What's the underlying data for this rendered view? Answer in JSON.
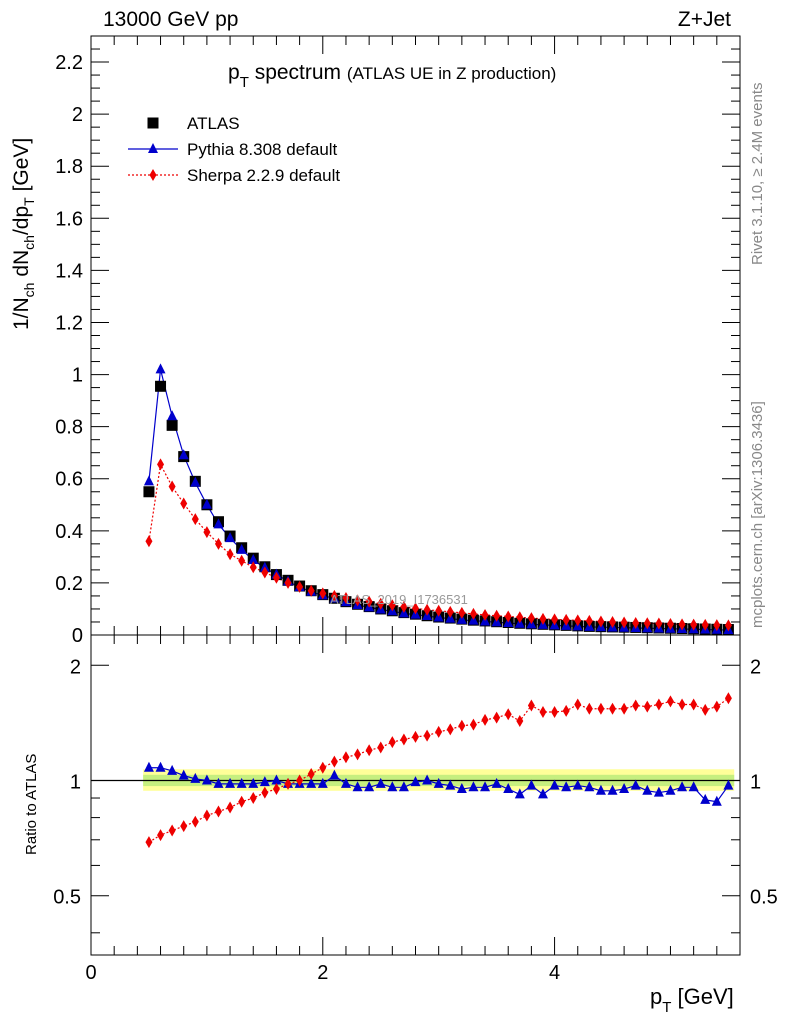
{
  "header": {
    "left": "13000 GeV pp",
    "right": "Z+Jet"
  },
  "side_labels": {
    "rivet": "Rivet 3.1.10, ≥ 2.4M events",
    "mcplots": "mcplots.cern.ch [arXiv:1306.3436]"
  },
  "watermark": "ATLAS_2019_I1736531",
  "main_plot": {
    "title_main": "p",
    "title_sub": "T",
    "title_rest": " spectrum",
    "title_note": "(ATLAS UE in Z production)",
    "ylabel": "1/N_ch dN_ch/dp_T [GeV]",
    "yticks": [
      "0",
      "0.2",
      "0.4",
      "0.6",
      "0.8",
      "1",
      "1.2",
      "1.4",
      "1.6",
      "1.8",
      "2",
      "2.2"
    ]
  },
  "ratio_plot": {
    "ylabel": "Ratio to ATLAS",
    "yticks": [
      "0.5",
      "1",
      "2"
    ]
  },
  "xaxis": {
    "label_main": "p",
    "label_sub": "T",
    "label_unit": " [GeV]",
    "ticks": [
      "0",
      "2",
      "4"
    ]
  },
  "legend": [
    {
      "name": "ATLAS",
      "color": "#000000",
      "marker": "square"
    },
    {
      "name": "Pythia 8.308 default",
      "color": "#0000cc",
      "marker": "triangle"
    },
    {
      "name": "Sherpa 2.2.9 default",
      "color": "#ee0000",
      "marker": "diamond"
    }
  ],
  "chart_data": {
    "type": "scatter",
    "xlim": [
      0,
      5.6
    ],
    "ylim_main": [
      0,
      2.3
    ],
    "ylim_ratio": [
      0.35,
      2.4
    ],
    "ratio_scale": "log",
    "x": [
      0.5,
      0.6,
      0.7,
      0.8,
      0.9,
      1.0,
      1.1,
      1.2,
      1.3,
      1.4,
      1.5,
      1.6,
      1.7,
      1.8,
      1.9,
      2.0,
      2.1,
      2.2,
      2.3,
      2.4,
      2.5,
      2.6,
      2.7,
      2.8,
      2.9,
      3.0,
      3.1,
      3.2,
      3.3,
      3.4,
      3.5,
      3.6,
      3.7,
      3.8,
      3.9,
      4.0,
      4.1,
      4.2,
      4.3,
      4.4,
      4.5,
      4.6,
      4.7,
      4.8,
      4.9,
      5.0,
      5.1,
      5.2,
      5.3,
      5.4,
      5.5
    ],
    "series": [
      {
        "name": "ATLAS",
        "values": [
          0.55,
          0.955,
          0.805,
          0.685,
          0.59,
          0.5,
          0.435,
          0.38,
          0.335,
          0.295,
          0.262,
          0.232,
          0.21,
          0.188,
          0.17,
          0.155,
          0.141,
          0.128,
          0.118,
          0.109,
          0.1,
          0.093,
          0.086,
          0.08,
          0.074,
          0.069,
          0.065,
          0.061,
          0.057,
          0.054,
          0.051,
          0.048,
          0.045,
          0.043,
          0.041,
          0.039,
          0.037,
          0.035,
          0.033,
          0.032,
          0.031,
          0.03,
          0.029,
          0.028,
          0.027,
          0.026,
          0.025,
          0.024,
          0.023,
          0.022,
          0.021
        ]
      },
      {
        "name": "Pythia 8.308 default",
        "values": [
          0.59,
          1.02,
          0.84,
          0.69,
          0.585,
          0.5,
          0.425,
          0.372,
          0.327,
          0.288,
          0.258,
          0.232,
          0.206,
          0.184,
          0.166,
          0.152,
          0.14,
          0.126,
          0.115,
          0.106,
          0.098,
          0.091,
          0.083,
          0.078,
          0.073,
          0.067,
          0.063,
          0.058,
          0.055,
          0.052,
          0.049,
          0.046,
          0.043,
          0.041,
          0.039,
          0.037,
          0.035,
          0.033,
          0.031,
          0.03,
          0.029,
          0.028,
          0.027,
          0.026,
          0.025,
          0.024,
          0.023,
          0.022,
          0.021,
          0.02,
          0.019
        ]
      },
      {
        "name": "Sherpa 2.2.9 default",
        "values": [
          0.36,
          0.655,
          0.57,
          0.505,
          0.445,
          0.395,
          0.35,
          0.31,
          0.285,
          0.26,
          0.24,
          0.22,
          0.2,
          0.185,
          0.17,
          0.16,
          0.15,
          0.142,
          0.133,
          0.128,
          0.12,
          0.114,
          0.108,
          0.102,
          0.097,
          0.093,
          0.089,
          0.085,
          0.081,
          0.077,
          0.074,
          0.071,
          0.068,
          0.065,
          0.062,
          0.06,
          0.058,
          0.056,
          0.054,
          0.052,
          0.05,
          0.048,
          0.046,
          0.045,
          0.044,
          0.042,
          0.041,
          0.04,
          0.039,
          0.038,
          0.037
        ]
      }
    ],
    "ratio_series": [
      {
        "name": "Pythia 8.308 default",
        "values": [
          1.08,
          1.08,
          1.06,
          1.03,
          1.01,
          1.0,
          0.98,
          0.98,
          0.98,
          0.98,
          0.99,
          1.0,
          0.98,
          0.98,
          0.98,
          0.98,
          1.03,
          0.98,
          0.96,
          0.96,
          0.98,
          0.96,
          0.96,
          0.99,
          1.0,
          0.98,
          0.97,
          0.95,
          0.96,
          0.96,
          0.98,
          0.95,
          0.92,
          0.97,
          0.92,
          0.97,
          0.96,
          0.97,
          0.96,
          0.94,
          0.94,
          0.95,
          0.97,
          0.94,
          0.93,
          0.94,
          0.96,
          0.96,
          0.89,
          0.88,
          0.97
        ]
      },
      {
        "name": "Sherpa 2.2.9 default",
        "values": [
          0.69,
          0.72,
          0.74,
          0.76,
          0.78,
          0.81,
          0.83,
          0.85,
          0.88,
          0.9,
          0.93,
          0.95,
          0.98,
          1.0,
          1.04,
          1.08,
          1.12,
          1.15,
          1.17,
          1.2,
          1.22,
          1.26,
          1.28,
          1.3,
          1.31,
          1.34,
          1.36,
          1.39,
          1.4,
          1.44,
          1.46,
          1.49,
          1.43,
          1.57,
          1.51,
          1.51,
          1.52,
          1.58,
          1.54,
          1.54,
          1.54,
          1.54,
          1.57,
          1.56,
          1.58,
          1.61,
          1.58,
          1.58,
          1.53,
          1.56,
          1.64
        ]
      }
    ]
  }
}
